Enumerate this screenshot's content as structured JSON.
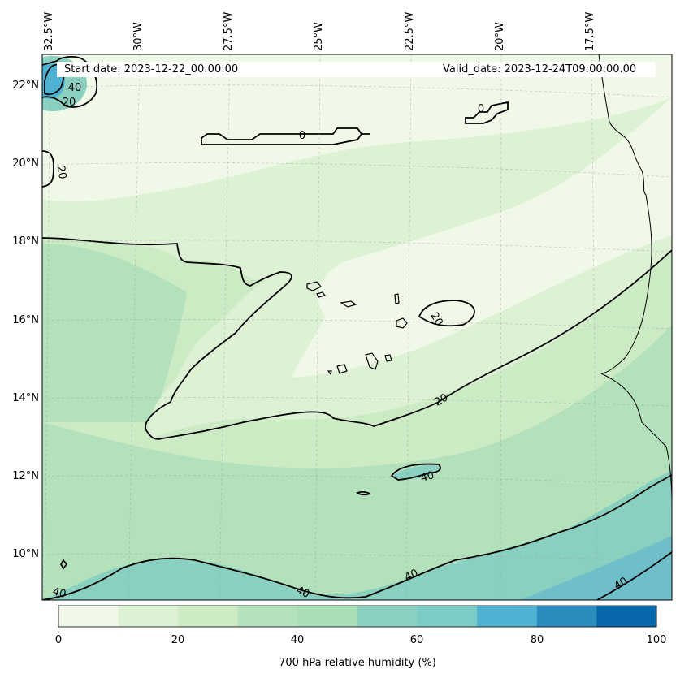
{
  "map": {
    "start_date": "Start date: 2023-12-22_00:00:00",
    "valid_date": "Valid_date: 2023-12-24T09:00:00.00",
    "longitude_labels": [
      "32.5°W",
      "30°W",
      "27.5°W",
      "25°W",
      "22.5°W",
      "20°W",
      "17.5°W"
    ],
    "latitude_labels": [
      "22°N",
      "20°N",
      "18°N",
      "16°N",
      "14°N",
      "12°N",
      "10°N"
    ],
    "contour_labels": [
      "0",
      "0",
      "20",
      "40",
      "20",
      "20",
      "20",
      "40",
      "40",
      "40",
      "40",
      "40"
    ]
  },
  "colorbar": {
    "label": "700 hPa relative humidity (%)",
    "ticks": [
      "0",
      "20",
      "40",
      "60",
      "80",
      "100"
    ],
    "levels": [
      0,
      10,
      20,
      30,
      40,
      50,
      60,
      70,
      80,
      90,
      100
    ],
    "colors": [
      "#f0f9e8",
      "#ddf1d5",
      "#ccebc5",
      "#b2e1bb",
      "#a8ddb5",
      "#8ad0c0",
      "#7bccc4",
      "#4eb3d3",
      "#2b8cbe",
      "#0868ac"
    ]
  }
}
